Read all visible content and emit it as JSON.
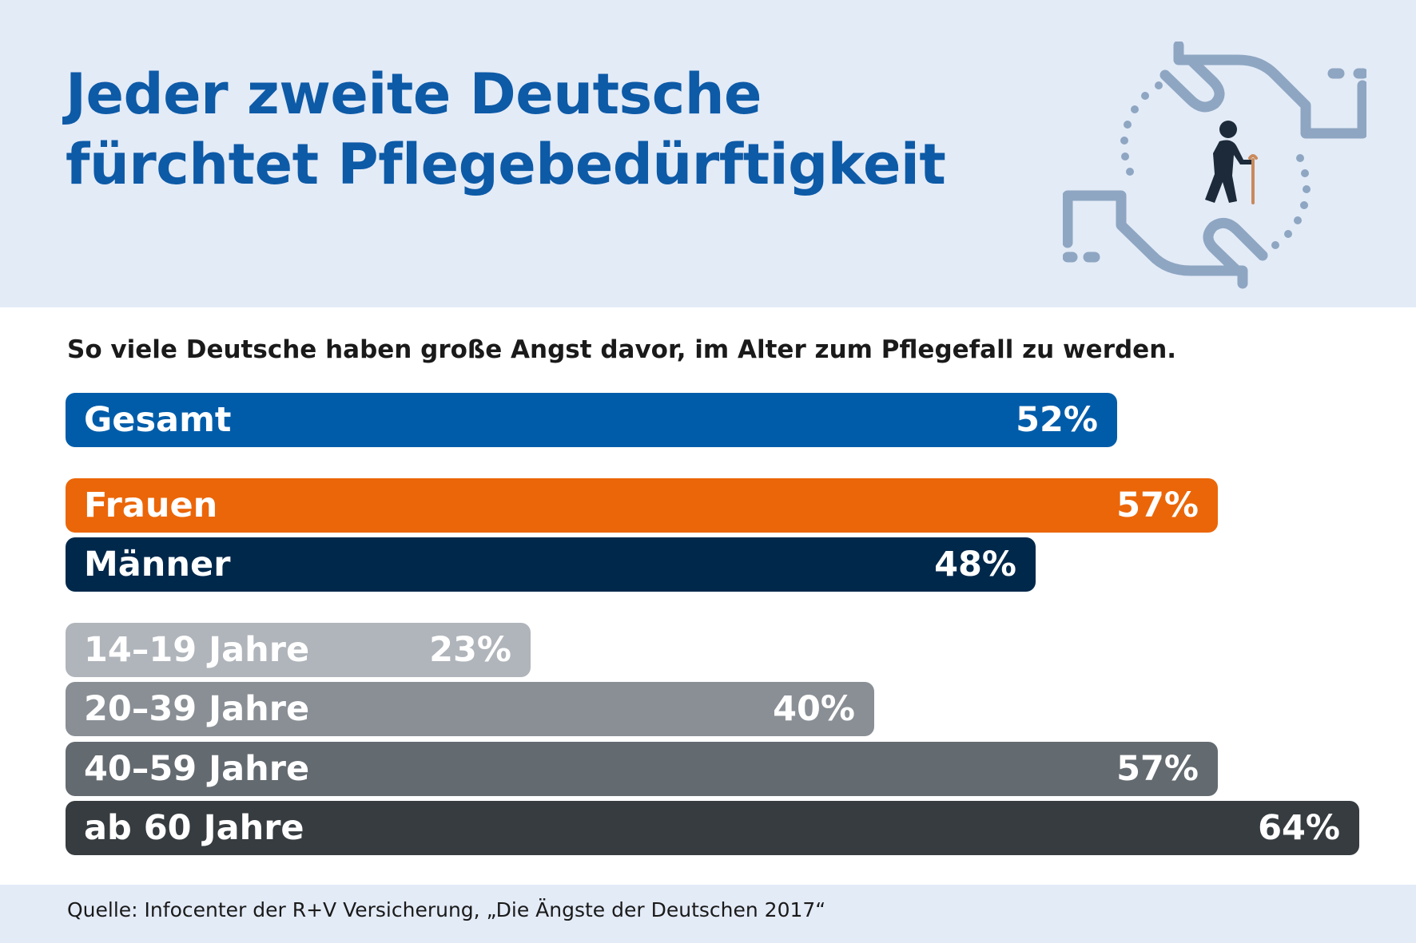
{
  "header": {
    "title_line1": "Jeder zweite Deutsche",
    "title_line2": "fürchtet Pflegebedürftigkeit",
    "icon": "caring-hands-elderly-person-icon"
  },
  "subtitle": "So viele Deutsche haben große Angst davor, im Alter zum Pflegefall zu werden.",
  "colors": {
    "background_band": "#e3ebf7",
    "title": "#0d5aa7",
    "icon": "#8ea6c2",
    "person": "#1c2a3a"
  },
  "chart_data": {
    "type": "bar",
    "orientation": "horizontal",
    "value_unit": "%",
    "xlim": [
      0,
      100
    ],
    "categories": [
      "Gesamt",
      "Frauen",
      "Männer",
      "14–19 Jahre",
      "20–39 Jahre",
      "40–59 Jahre",
      "ab 60 Jahre"
    ],
    "values": [
      52,
      57,
      48,
      23,
      40,
      57,
      64
    ],
    "value_labels": [
      "52%",
      "57%",
      "48%",
      "23%",
      "40%",
      "57%",
      "64%"
    ],
    "bar_colors": [
      "#005ca9",
      "#eb6608",
      "#00284b",
      "#b0b5bb",
      "#898f95",
      "#636a70",
      "#363c40"
    ],
    "groups": [
      [
        "Gesamt"
      ],
      [
        "Frauen",
        "Männer"
      ],
      [
        "14–19 Jahre",
        "20–39 Jahre",
        "40–59 Jahre",
        "ab 60 Jahre"
      ]
    ]
  },
  "footer": {
    "source": "Quelle: Infocenter der R+V Versicherung, „Die Ängste der Deutschen 2017“"
  }
}
